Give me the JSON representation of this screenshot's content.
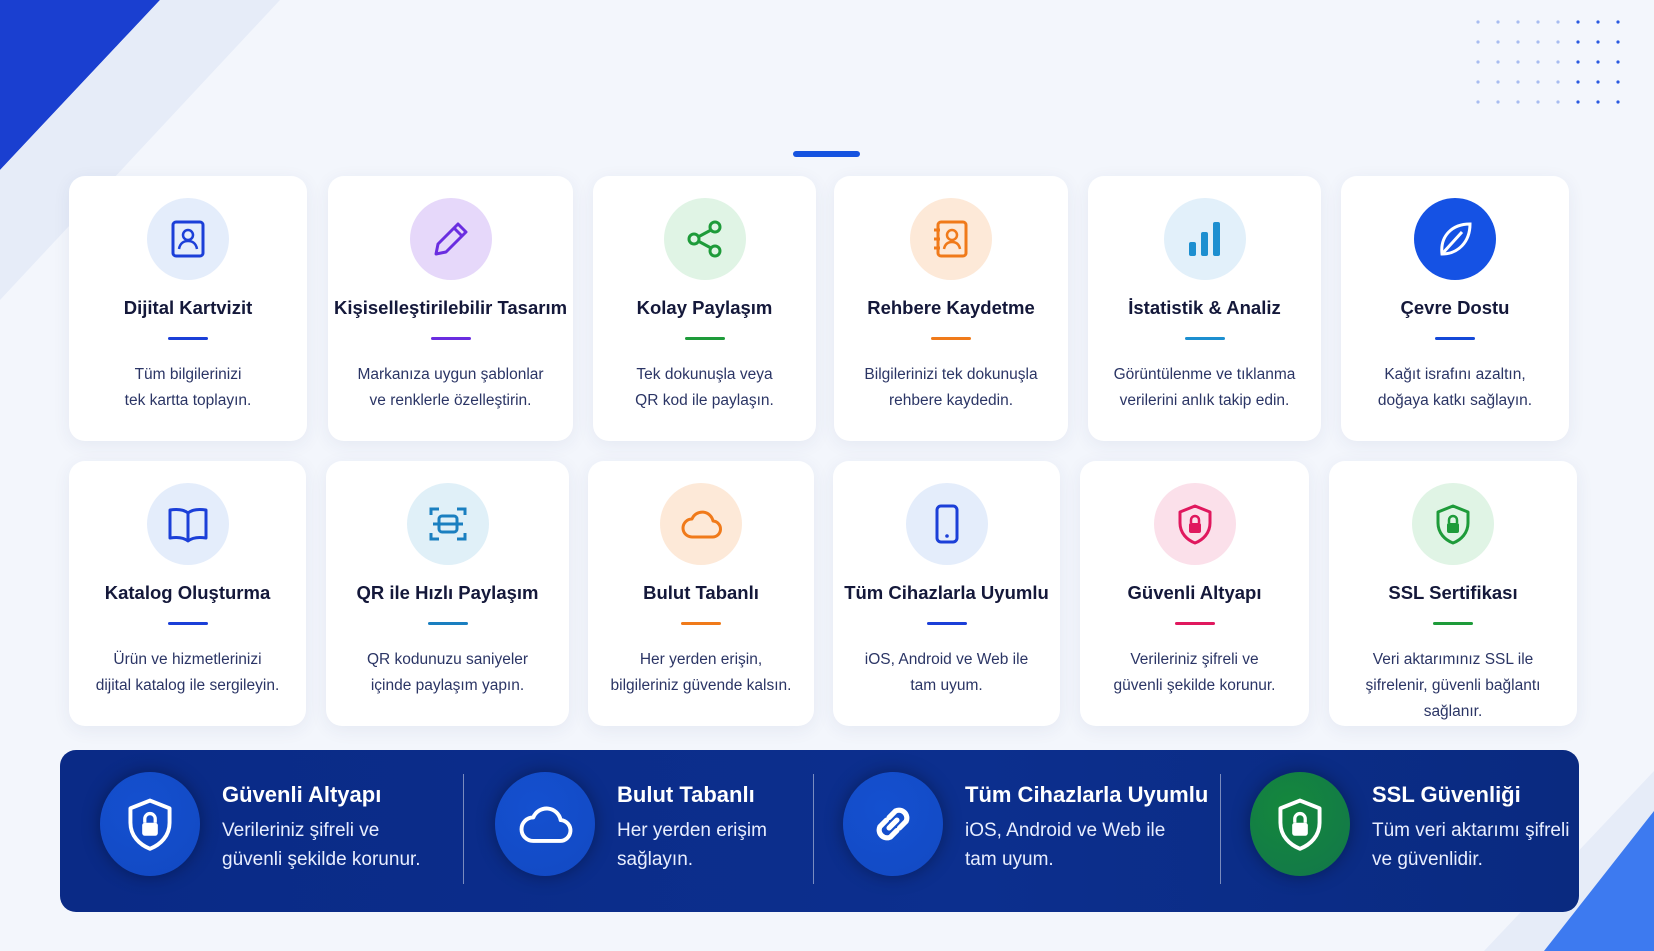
{
  "accent": "#1553e0",
  "cards": [
    {
      "title": "Dijital Kartvizit",
      "desc": [
        "Tüm bilgilerinizi",
        "tek kartta toplayın."
      ],
      "icon": "contact-card-icon",
      "color": "#1b3fd8",
      "bg": "#e4edfb"
    },
    {
      "title": "Kişiselleştirilebilir Tasarım",
      "desc": [
        "Markanıza uygun şablonlar",
        "ve renklerle özelleştirin."
      ],
      "icon": "pencil-icon",
      "color": "#6a2de0",
      "bg": "#e6d8fa"
    },
    {
      "title": "Kolay Paylaşım",
      "desc": [
        "Tek dokunuşla veya",
        "QR kod ile paylaşın."
      ],
      "icon": "share-icon",
      "color": "#1e9b3a",
      "bg": "#e0f4e5"
    },
    {
      "title": "Rehbere Kaydetme",
      "desc": [
        "Bilgilerinizi tek dokunuşla",
        "rehbere kaydedin."
      ],
      "icon": "address-book-icon",
      "color": "#f07a1a",
      "bg": "#fde9d8"
    },
    {
      "title": "İstatistik & Analiz",
      "desc": [
        "Görüntülenme ve tıklanma",
        "verilerini anlık takip edin."
      ],
      "icon": "bar-chart-icon",
      "color": "#1d8fd0",
      "bg": "#e2f0fa"
    },
    {
      "title": "Çevre Dostu",
      "desc": [
        "Kağıt israfını azaltın,",
        "doğaya katkı sağlayın."
      ],
      "icon": "leaf-icon",
      "color": "#1448d8",
      "bg": "#1552e4"
    },
    {
      "title": "Katalog Oluşturma",
      "desc": [
        "Ürün ve hizmetlerinizi",
        "dijital katalog ile sergileyin."
      ],
      "icon": "book-icon",
      "color": "#1b3fd8",
      "bg": "#e4edfb"
    },
    {
      "title": "QR ile Hızlı Paylaşım",
      "desc": [
        "QR kodunuzu saniyeler",
        "içinde paylaşım yapın."
      ],
      "icon": "qr-scan-icon",
      "color": "#1a7fc0",
      "bg": "#e0f0f8"
    },
    {
      "title": "Bulut Tabanlı",
      "desc": [
        "Her yerden erişin,",
        "bilgileriniz güvende kalsın."
      ],
      "icon": "cloud-icon",
      "color": "#f07a1a",
      "bg": "#fde9d8"
    },
    {
      "title": "Tüm Cihazlarla Uyumlu",
      "desc": [
        "iOS, Android ve Web ile",
        "tam uyum."
      ],
      "icon": "smartphone-icon",
      "color": "#1b3fd8",
      "bg": "#e4edfb"
    },
    {
      "title": "Güvenli Altyapı",
      "desc": [
        "Verileriniz şifreli ve",
        "güvenli şekilde korunur."
      ],
      "icon": "shield-lock-icon",
      "color": "#e0185e",
      "bg": "#fbe0ea"
    },
    {
      "title": "SSL Sertifikası",
      "desc": [
        "Veri aktarımınız SSL ile",
        "şifrelenir, güvenli bağlantı sağlanır."
      ],
      "icon": "shield-lock-icon",
      "color": "#1e9b3a",
      "bg": "#e0f4e5"
    }
  ],
  "banner": [
    {
      "title": "Güvenli Altyapı",
      "desc": [
        "Verileriniz şifreli ve",
        "güvenli şekilde korunur."
      ],
      "icon": "shield-lock-icon",
      "bg": "#1450d0"
    },
    {
      "title": "Bulut Tabanlı",
      "desc": [
        "Her yerden erişim",
        "sağlayın."
      ],
      "icon": "cloud-icon",
      "bg": "#1450d0"
    },
    {
      "title": "Tüm Cihazlarla Uyumlu",
      "desc": [
        "iOS, Android ve Web ile",
        "tam uyum."
      ],
      "icon": "link-icon",
      "bg": "#1450d0"
    },
    {
      "title": "SSL Güvenliği",
      "desc": [
        "Tüm veri aktarımı şifreli",
        "ve güvenlidir."
      ],
      "icon": "shield-lock-icon",
      "bg": "#14883c"
    }
  ]
}
